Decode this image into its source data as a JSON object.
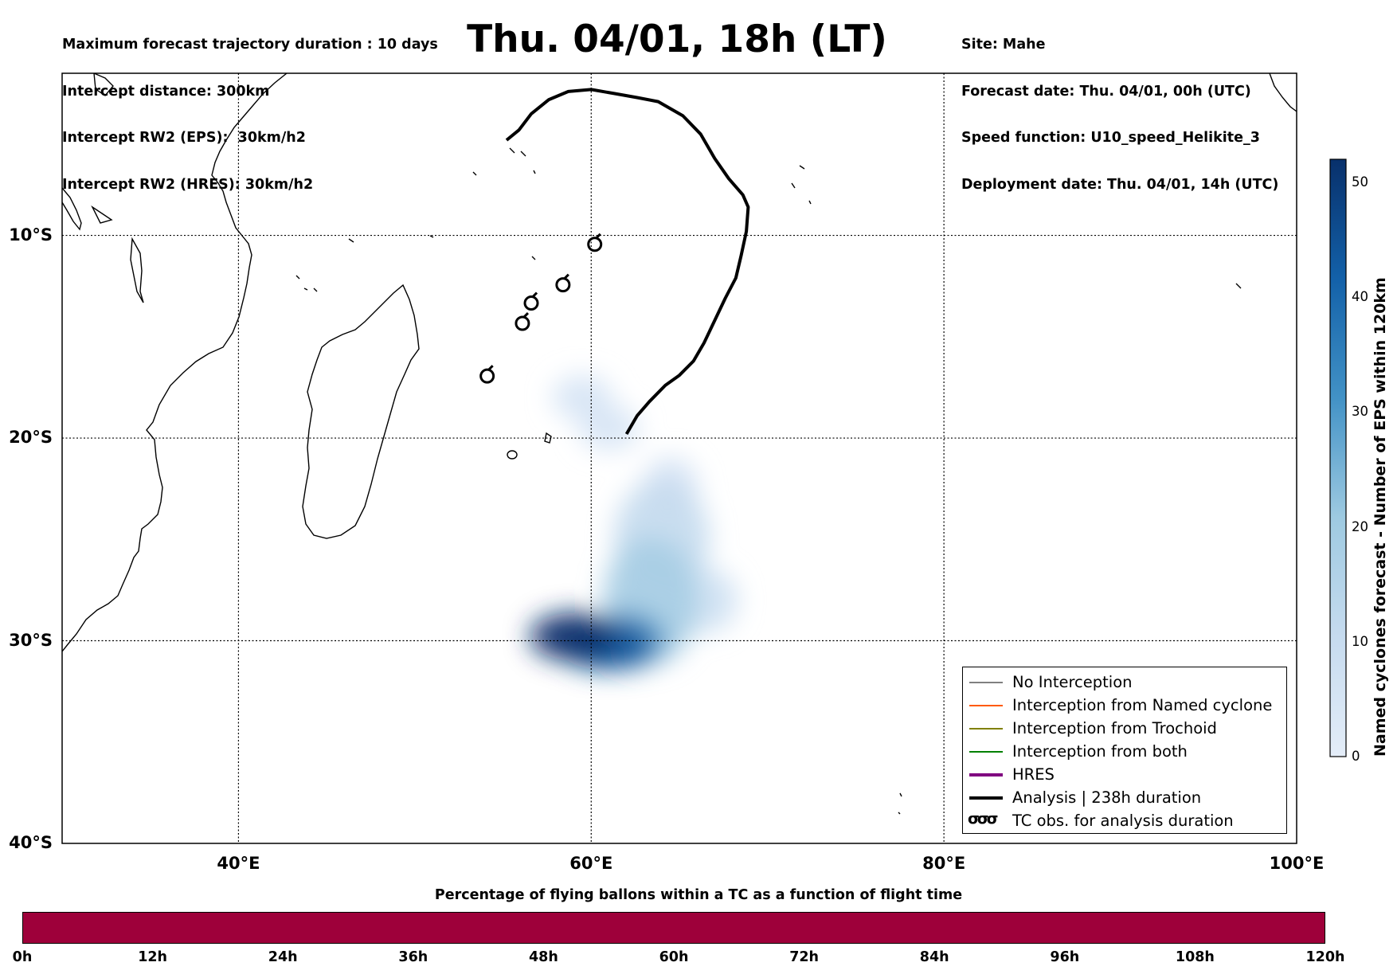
{
  "header_left": [
    "Maximum forecast trajectory duration : 10 days",
    "Intercept distance: 300km",
    "Intercept RW2 (EPS):  30km/h2",
    "Intercept RW2 (HRES): 30km/h2"
  ],
  "header_right": [
    "Site: Mahe",
    "Forecast date: Thu. 04/01, 00h (UTC)",
    "Speed function: U10_speed_Helikite_3",
    "Deployment date: Thu. 04/01, 14h (UTC)"
  ],
  "title": "Thu. 04/01, 18h (LT)",
  "map": {
    "lon_range": [
      30,
      100
    ],
    "lat_range": [
      -40,
      -2
    ],
    "lon_ticks": [
      {
        "value": 40,
        "label": "40°E"
      },
      {
        "value": 60,
        "label": "60°E"
      },
      {
        "value": 80,
        "label": "80°E"
      },
      {
        "value": 100,
        "label": "100°E"
      }
    ],
    "lat_ticks": [
      {
        "value": -10,
        "label": "10°S"
      },
      {
        "value": -20,
        "label": "20°S"
      },
      {
        "value": -30,
        "label": "30°S"
      },
      {
        "value": -40,
        "label": "40°S"
      }
    ],
    "analysis_track": [
      [
        62.0,
        -19.8
      ],
      [
        62.6,
        -18.9
      ],
      [
        63.3,
        -18.2
      ],
      [
        64.2,
        -17.4
      ],
      [
        65.0,
        -16.9
      ],
      [
        65.8,
        -16.2
      ],
      [
        66.4,
        -15.3
      ],
      [
        67.0,
        -14.2
      ],
      [
        67.6,
        -13.1
      ],
      [
        68.2,
        -12.1
      ],
      [
        68.5,
        -11.0
      ],
      [
        68.8,
        -9.8
      ],
      [
        68.9,
        -8.6
      ],
      [
        68.6,
        -8.0
      ],
      [
        67.8,
        -7.2
      ],
      [
        67.0,
        -6.2
      ],
      [
        66.2,
        -5.0
      ],
      [
        65.2,
        -4.1
      ],
      [
        63.8,
        -3.4
      ],
      [
        62.6,
        -3.2
      ],
      [
        61.3,
        -3.0
      ],
      [
        60.0,
        -2.8
      ],
      [
        58.7,
        -2.9
      ],
      [
        57.6,
        -3.3
      ],
      [
        56.6,
        -4.0
      ],
      [
        55.9,
        -4.8
      ],
      [
        55.2,
        -5.3
      ]
    ],
    "tc_obs": [
      [
        60.2,
        -10.4
      ],
      [
        58.4,
        -12.4
      ],
      [
        56.6,
        -13.3
      ],
      [
        56.1,
        -14.3
      ],
      [
        54.1,
        -16.9
      ]
    ],
    "density_blobs": [
      {
        "lon": 59.0,
        "lat": -29.8,
        "count": 52
      },
      {
        "lon": 60.8,
        "lat": -30.2,
        "count": 44
      },
      {
        "lon": 62.0,
        "lat": -30.0,
        "count": 30
      },
      {
        "lon": 63.4,
        "lat": -28.0,
        "count": 18
      },
      {
        "lon": 64.0,
        "lat": -25.0,
        "count": 10
      },
      {
        "lon": 64.5,
        "lat": -22.5,
        "count": 5
      },
      {
        "lon": 59.5,
        "lat": -18.0,
        "count": 4
      },
      {
        "lon": 61.0,
        "lat": -19.5,
        "count": 4
      },
      {
        "lon": 66.5,
        "lat": -28.0,
        "count": 7
      }
    ]
  },
  "colorbar": {
    "label": "Named cyclones forecast - Number of EPS within 120km",
    "min": 0,
    "max": 52,
    "ticks": [
      0,
      10,
      20,
      30,
      40,
      50
    ],
    "color_low": "#e4edf8",
    "color_high": "#08306b"
  },
  "legend": [
    {
      "label": "No Interception",
      "color": "#808080",
      "style": "thin-line"
    },
    {
      "label": "Interception from Named cyclone",
      "color": "#ff5a00",
      "style": "thin-line"
    },
    {
      "label": "Interception from Trochoid",
      "color": "#808000",
      "style": "thin-line"
    },
    {
      "label": "Interception from both",
      "color": "#008000",
      "style": "thin-line"
    },
    {
      "label": "HRES",
      "color": "#800080",
      "style": "thick-line"
    },
    {
      "label": "Analysis | 238h duration",
      "color": "#000000",
      "style": "thick-line"
    },
    {
      "label": "TC obs. for analysis duration",
      "symbol": "σσσ",
      "style": "tc-symbol"
    }
  ],
  "flight_bar": {
    "caption": "Percentage of flying ballons within a TC as a function of flight time",
    "color": "#9e003a",
    "hours": [
      "0h",
      "12h",
      "24h",
      "36h",
      "48h",
      "60h",
      "72h",
      "84h",
      "96h",
      "108h",
      "120h"
    ]
  }
}
